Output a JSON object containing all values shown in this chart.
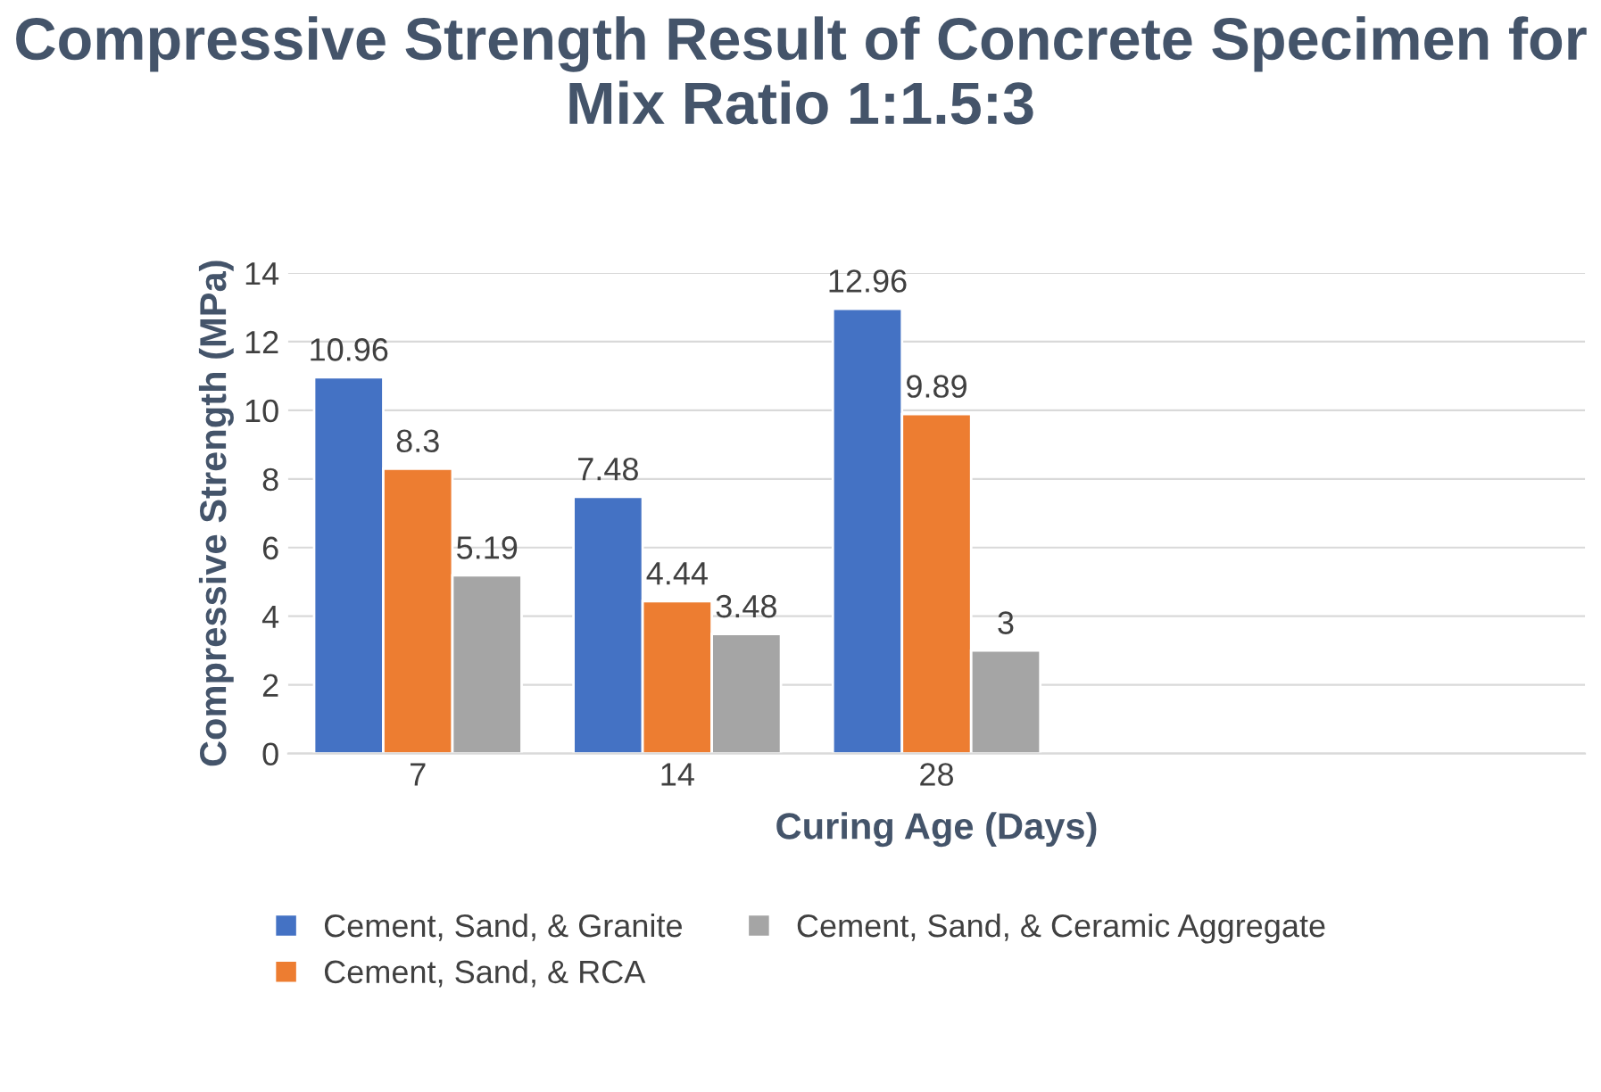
{
  "chart_data": {
    "type": "bar",
    "title": "Compressive Strength Result of Concrete Specimen for Mix Ratio 1:1.5:3",
    "xlabel": "Curing Age (Days)",
    "ylabel": "Compressive Strength (MPa)",
    "categories": [
      "7",
      "14",
      "28",
      null,
      null
    ],
    "series": [
      {
        "name": "Cement, Sand, & Granite",
        "color": "#4472c4",
        "values": [
          10.96,
          7.48,
          12.96,
          null,
          null
        ]
      },
      {
        "name": "Cement, Sand, & RCA",
        "color": "#ed7d31",
        "values": [
          8.3,
          4.44,
          9.89,
          null,
          null
        ]
      },
      {
        "name": "Cement, Sand, & Ceramic Aggregate",
        "color": "#a5a5a5",
        "values": [
          5.19,
          3.48,
          3,
          null,
          null
        ]
      }
    ],
    "ylim": [
      0,
      14
    ],
    "yticks": [
      0,
      2,
      4,
      6,
      8,
      10,
      12,
      14
    ],
    "grid": "y",
    "legend": "bottom",
    "data_labels": true
  }
}
